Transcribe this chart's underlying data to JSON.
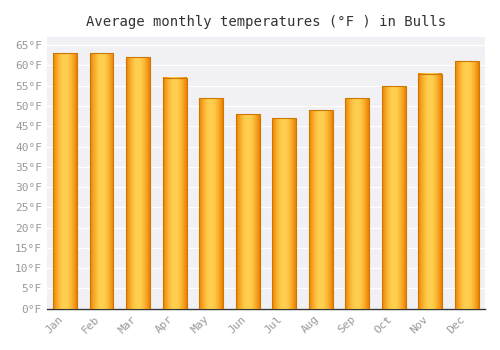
{
  "title": "Average monthly temperatures (°F ) in Bulls",
  "months": [
    "Jan",
    "Feb",
    "Mar",
    "Apr",
    "May",
    "Jun",
    "Jul",
    "Aug",
    "Sep",
    "Oct",
    "Nov",
    "Dec"
  ],
  "values": [
    63,
    63,
    62,
    57,
    52,
    48,
    47,
    49,
    52,
    55,
    58,
    61
  ],
  "bar_color_center": "#FFD050",
  "bar_color_edge": "#F08000",
  "bar_edge_color": "#CC7700",
  "ylim": [
    0,
    67
  ],
  "yticks": [
    0,
    5,
    10,
    15,
    20,
    25,
    30,
    35,
    40,
    45,
    50,
    55,
    60,
    65
  ],
  "ytick_labels": [
    "0°F",
    "5°F",
    "10°F",
    "15°F",
    "20°F",
    "25°F",
    "30°F",
    "35°F",
    "40°F",
    "45°F",
    "50°F",
    "55°F",
    "60°F",
    "65°F"
  ],
  "background_color": "#ffffff",
  "plot_bg_color": "#f0f0f5",
  "grid_color": "#ffffff",
  "title_fontsize": 10,
  "tick_fontsize": 8,
  "bar_width": 0.65
}
